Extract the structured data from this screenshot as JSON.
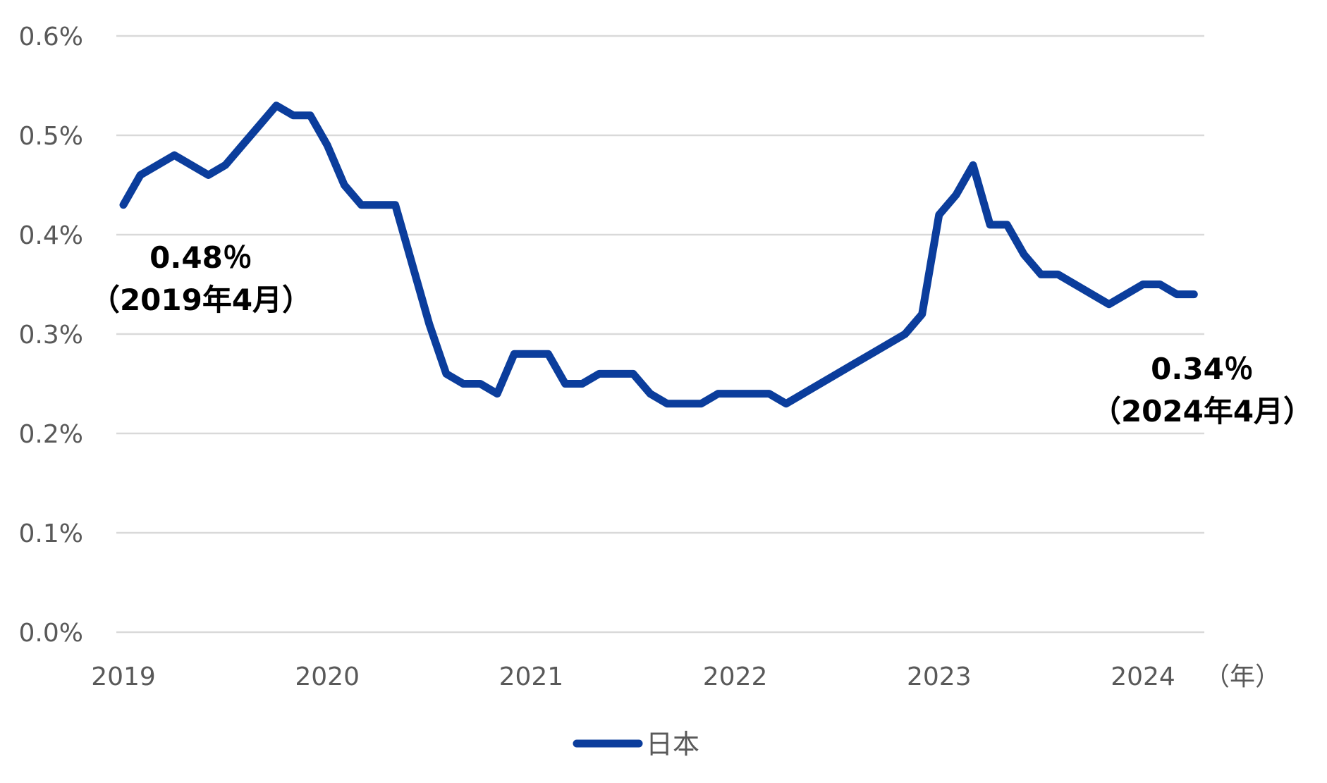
{
  "chart_data": {
    "type": "line",
    "title": "",
    "xlabel": "",
    "ylabel": "",
    "x_unit": "（年）",
    "xlim": [
      "2019-01",
      "2024-04"
    ],
    "ylim": [
      0,
      0.6
    ],
    "y_ticks": [
      "0.0%",
      "0.1%",
      "0.2%",
      "0.3%",
      "0.4%",
      "0.5%",
      "0.6%"
    ],
    "y_tick_values": [
      0,
      0.1,
      0.2,
      0.3,
      0.4,
      0.5,
      0.6
    ],
    "x_ticks": [
      "2019",
      "2020",
      "2021",
      "2022",
      "2023",
      "2024"
    ],
    "x_tick_values": [
      "2019-01",
      "2020-01",
      "2021-01",
      "2022-01",
      "2023-01",
      "2024-01"
    ],
    "grid": true,
    "legend_position": "bottom",
    "colors": {
      "series": "#0b3d9c",
      "grid": "#d9d9d9",
      "tick_text": "#595959",
      "annotation_text": "#000000"
    },
    "series": [
      {
        "name": "日本",
        "x": [
          "2019-01",
          "2019-02",
          "2019-04",
          "2019-06",
          "2019-07",
          "2019-08",
          "2019-09",
          "2019-10",
          "2019-11",
          "2019-12",
          "2020-01",
          "2020-02",
          "2020-03",
          "2020-04",
          "2020-05",
          "2020-06",
          "2020-07",
          "2020-08",
          "2020-09",
          "2020-10",
          "2020-11",
          "2020-12",
          "2021-01",
          "2021-02",
          "2021-03",
          "2021-04",
          "2021-05",
          "2021-06",
          "2021-07",
          "2021-08",
          "2021-09",
          "2021-10",
          "2021-11",
          "2021-12",
          "2022-01",
          "2022-02",
          "2022-03",
          "2022-04",
          "2022-05",
          "2022-06",
          "2022-07",
          "2022-08",
          "2022-09",
          "2022-10",
          "2022-11",
          "2022-12",
          "2023-01",
          "2023-02",
          "2023-03",
          "2023-04",
          "2023-05",
          "2023-06",
          "2023-07",
          "2023-08",
          "2023-09",
          "2023-10",
          "2023-11",
          "2023-12",
          "2024-01",
          "2024-02",
          "2024-03",
          "2024-04"
        ],
        "y": [
          0.43,
          0.46,
          0.48,
          0.46,
          0.47,
          0.49,
          0.51,
          0.53,
          0.52,
          0.52,
          0.49,
          0.45,
          0.43,
          0.43,
          0.43,
          0.37,
          0.31,
          0.26,
          0.25,
          0.25,
          0.24,
          0.28,
          0.28,
          0.28,
          0.25,
          0.25,
          0.26,
          0.26,
          0.26,
          0.24,
          0.23,
          0.23,
          0.23,
          0.24,
          0.24,
          0.24,
          0.24,
          0.23,
          0.24,
          0.25,
          0.26,
          0.27,
          0.28,
          0.29,
          0.3,
          0.32,
          0.42,
          0.44,
          0.47,
          0.41,
          0.41,
          0.38,
          0.36,
          0.36,
          0.35,
          0.34,
          0.33,
          0.34,
          0.35,
          0.35,
          0.34,
          0.34
        ]
      }
    ],
    "annotations": [
      {
        "value": "0.48％",
        "label": "（2019年4月）"
      },
      {
        "value": "0.34％",
        "label": "（2024年4月）"
      }
    ]
  }
}
